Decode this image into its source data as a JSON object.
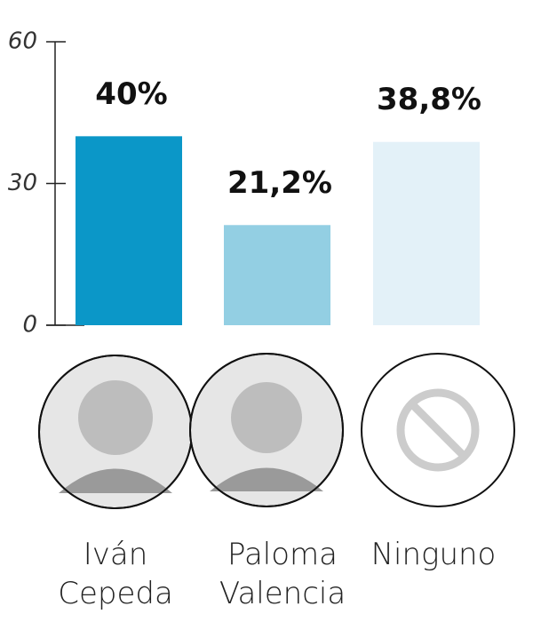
{
  "chart_data": {
    "type": "bar",
    "categories": [
      "Iván Cepeda",
      "Paloma Valencia",
      "Ninguno"
    ],
    "values": [
      40,
      21.2,
      38.8
    ],
    "value_labels": [
      "40%",
      "21,2%",
      "38,8%"
    ],
    "colors": [
      "#0b97c8",
      "#93cfe3",
      "#e3f1f8"
    ],
    "ylim": [
      0,
      60
    ],
    "yticks": [
      0,
      30,
      60
    ]
  }
}
